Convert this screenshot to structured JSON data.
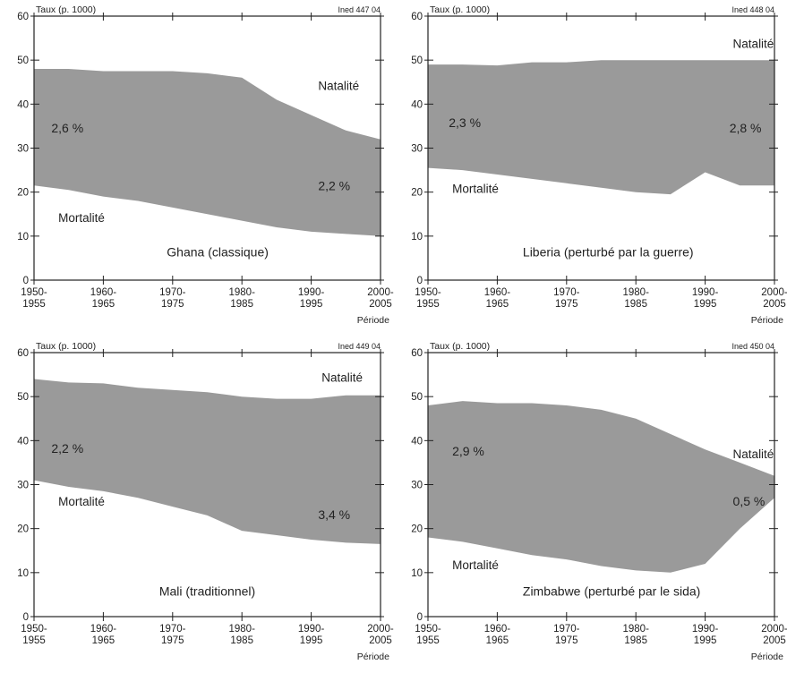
{
  "chart_data": [
    {
      "type": "area",
      "code": "Ined 447 04",
      "ylabel": "Taux (p. 1000)",
      "xlabel": "Période",
      "ylim": [
        0,
        60
      ],
      "yticks": [
        "0",
        "10",
        "20",
        "30",
        "40",
        "50",
        "60"
      ],
      "x_labels": [
        [
          "1950-",
          "1955"
        ],
        [
          "1960-",
          "1965"
        ],
        [
          "1970-",
          "1975"
        ],
        [
          "1980-",
          "1985"
        ],
        [
          "1990-",
          "1995"
        ],
        [
          "2000-",
          "2005"
        ]
      ],
      "x": [
        1950,
        1955,
        1960,
        1965,
        1970,
        1975,
        1980,
        1985,
        1990,
        1995,
        2000
      ],
      "series": [
        {
          "name": "Natalité",
          "values": [
            48,
            48,
            47.5,
            47.5,
            47.5,
            47,
            46,
            41,
            37.5,
            34,
            32
          ]
        },
        {
          "name": "Mortalité",
          "values": [
            21.5,
            20.5,
            19,
            18,
            16.5,
            15,
            13.5,
            12,
            11,
            10.5,
            10
          ]
        }
      ],
      "annotations": [
        "2,6 %",
        "2,2 %"
      ],
      "subtitle": "Ghana (classique)"
    },
    {
      "type": "area",
      "code": "Ined 448 04",
      "ylabel": "Taux (p. 1000)",
      "xlabel": "Période",
      "ylim": [
        0,
        60
      ],
      "yticks": [
        "0",
        "10",
        "20",
        "30",
        "40",
        "50",
        "60"
      ],
      "x_labels": [
        [
          "1950-",
          "1955"
        ],
        [
          "1960-",
          "1965"
        ],
        [
          "1970-",
          "1975"
        ],
        [
          "1980-",
          "1985"
        ],
        [
          "1990-",
          "1995"
        ],
        [
          "2000-",
          "2005"
        ]
      ],
      "x": [
        1950,
        1955,
        1960,
        1965,
        1970,
        1975,
        1980,
        1985,
        1990,
        1995,
        2000
      ],
      "series": [
        {
          "name": "Natalité",
          "values": [
            49,
            49,
            48.8,
            49.5,
            49.5,
            50,
            50,
            50,
            50,
            50,
            50
          ]
        },
        {
          "name": "Mortalité",
          "values": [
            25.5,
            25,
            24,
            23,
            22,
            21,
            20,
            19.5,
            24.5,
            21.5,
            21.5
          ]
        }
      ],
      "annotations": [
        "2,3 %",
        "2,8 %"
      ],
      "subtitle": "Liberia (perturbé par la guerre)"
    },
    {
      "type": "area",
      "code": "Ined 449 04",
      "ylabel": "Taux (p. 1000)",
      "xlabel": "Période",
      "ylim": [
        0,
        60
      ],
      "yticks": [
        "0",
        "10",
        "20",
        "30",
        "40",
        "50",
        "60"
      ],
      "x_labels": [
        [
          "1950-",
          "1955"
        ],
        [
          "1960-",
          "1965"
        ],
        [
          "1970-",
          "1975"
        ],
        [
          "1980-",
          "1985"
        ],
        [
          "1990-",
          "1995"
        ],
        [
          "2000-",
          "2005"
        ]
      ],
      "x": [
        1950,
        1955,
        1960,
        1965,
        1970,
        1975,
        1980,
        1985,
        1990,
        1995,
        2000
      ],
      "series": [
        {
          "name": "Natalité",
          "values": [
            54,
            53.2,
            53,
            52,
            51.5,
            51,
            50,
            49.5,
            49.5,
            50.3,
            50.3
          ]
        },
        {
          "name": "Mortalité",
          "values": [
            31,
            29.5,
            28.5,
            27,
            25,
            23,
            19.5,
            18.5,
            17.5,
            16.8,
            16.5
          ]
        }
      ],
      "annotations": [
        "2,2 %",
        "3,4 %"
      ],
      "subtitle": "Mali (traditionnel)"
    },
    {
      "type": "area",
      "code": "Ined 450 04",
      "ylabel": "Taux (p. 1000)",
      "xlabel": "Période",
      "ylim": [
        0,
        60
      ],
      "yticks": [
        "0",
        "10",
        "20",
        "30",
        "40",
        "50",
        "60"
      ],
      "x_labels": [
        [
          "1950-",
          "1955"
        ],
        [
          "1960-",
          "1965"
        ],
        [
          "1970-",
          "1975"
        ],
        [
          "1980-",
          "1985"
        ],
        [
          "1990-",
          "1995"
        ],
        [
          "2000-",
          "2005"
        ]
      ],
      "x": [
        1950,
        1955,
        1960,
        1965,
        1970,
        1975,
        1980,
        1985,
        1990,
        1995,
        2000
      ],
      "series": [
        {
          "name": "Natalité",
          "values": [
            48,
            49,
            48.5,
            48.5,
            48,
            47,
            45,
            41.5,
            38,
            35,
            32
          ]
        },
        {
          "name": "Mortalité",
          "values": [
            18,
            17,
            15.5,
            14,
            13,
            11.5,
            10.5,
            10,
            12,
            20,
            27
          ]
        }
      ],
      "annotations": [
        "2,9 %",
        "0,5 %"
      ],
      "subtitle": "Zimbabwe (perturbé par le sida)"
    }
  ]
}
